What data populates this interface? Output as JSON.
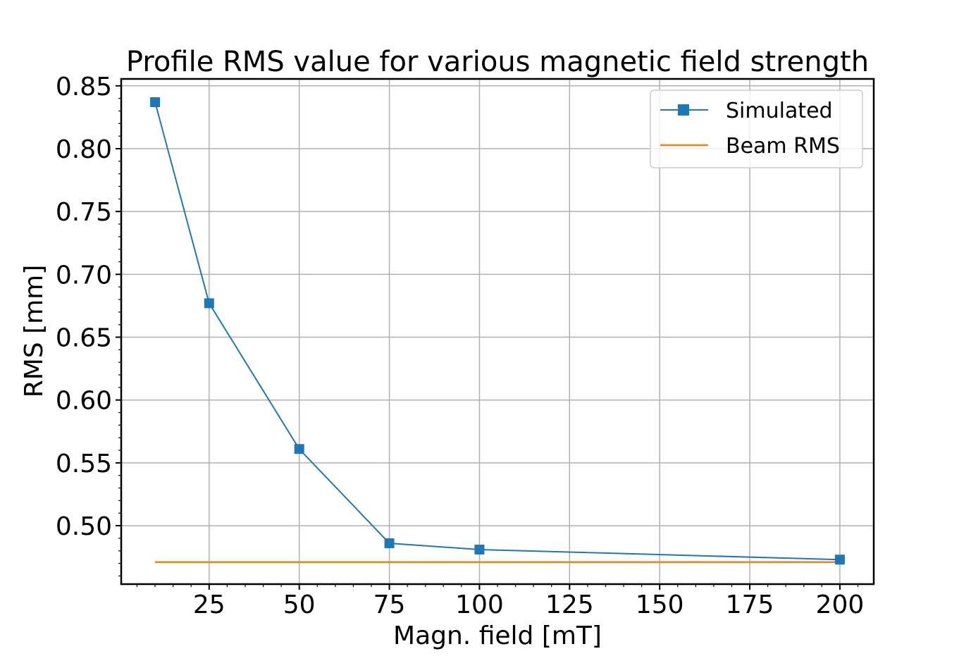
{
  "chart_data": {
    "type": "line",
    "title": "Profile RMS value for various magnetic field strength",
    "xlabel": "Magn. field [mT]",
    "ylabel": "RMS [mm]",
    "xlim": [
      0.6,
      209.4
    ],
    "ylim": [
      0.4535,
      0.8555
    ],
    "xticks": [
      25,
      50,
      75,
      100,
      125,
      150,
      175,
      200
    ],
    "yticks": [
      0.5,
      0.55,
      0.6,
      0.65,
      0.7,
      0.75,
      0.8,
      0.85
    ],
    "ytick_labels": [
      "0.50",
      "0.55",
      "0.60",
      "0.65",
      "0.70",
      "0.75",
      "0.80",
      "0.85"
    ],
    "grid": true,
    "legend_position": "top-right",
    "series": [
      {
        "name": "Simulated",
        "color": "#1f77b4",
        "marker": "square",
        "x": [
          10,
          25,
          50,
          75,
          100,
          200
        ],
        "y": [
          0.837,
          0.677,
          0.561,
          0.486,
          0.481,
          0.473
        ]
      },
      {
        "name": "Beam RMS",
        "color": "#ff7f0e",
        "marker": "none",
        "x": [
          10,
          200
        ],
        "y": [
          0.471,
          0.471
        ]
      }
    ]
  }
}
